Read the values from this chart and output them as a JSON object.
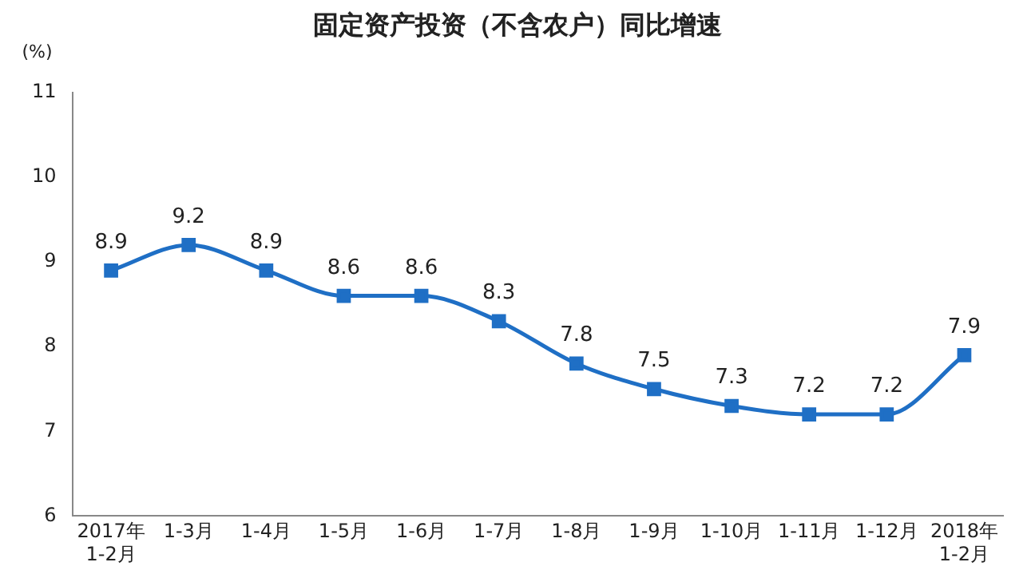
{
  "chart_data": {
    "type": "line",
    "title": "固定资产投资（不含农户）同比增速",
    "ylabel": "(%)",
    "categories": [
      "2017年\n1-2月",
      "1-3月",
      "1-4月",
      "1-5月",
      "1-6月",
      "1-7月",
      "1-8月",
      "1-9月",
      "1-10月",
      "1-11月",
      "1-12月",
      "2018年\n1-2月"
    ],
    "series": [
      {
        "color": "#1f6fc5",
        "values": [
          8.9,
          9.2,
          8.9,
          8.6,
          8.6,
          8.3,
          7.8,
          7.5,
          7.3,
          7.2,
          7.2,
          7.9
        ]
      }
    ],
    "ylim": [
      6,
      11
    ],
    "yticks": [
      6,
      7,
      8,
      9,
      10,
      11
    ],
    "grid": false,
    "legend": false,
    "marker": "square",
    "line_style": "solid",
    "data_labels": true
  }
}
